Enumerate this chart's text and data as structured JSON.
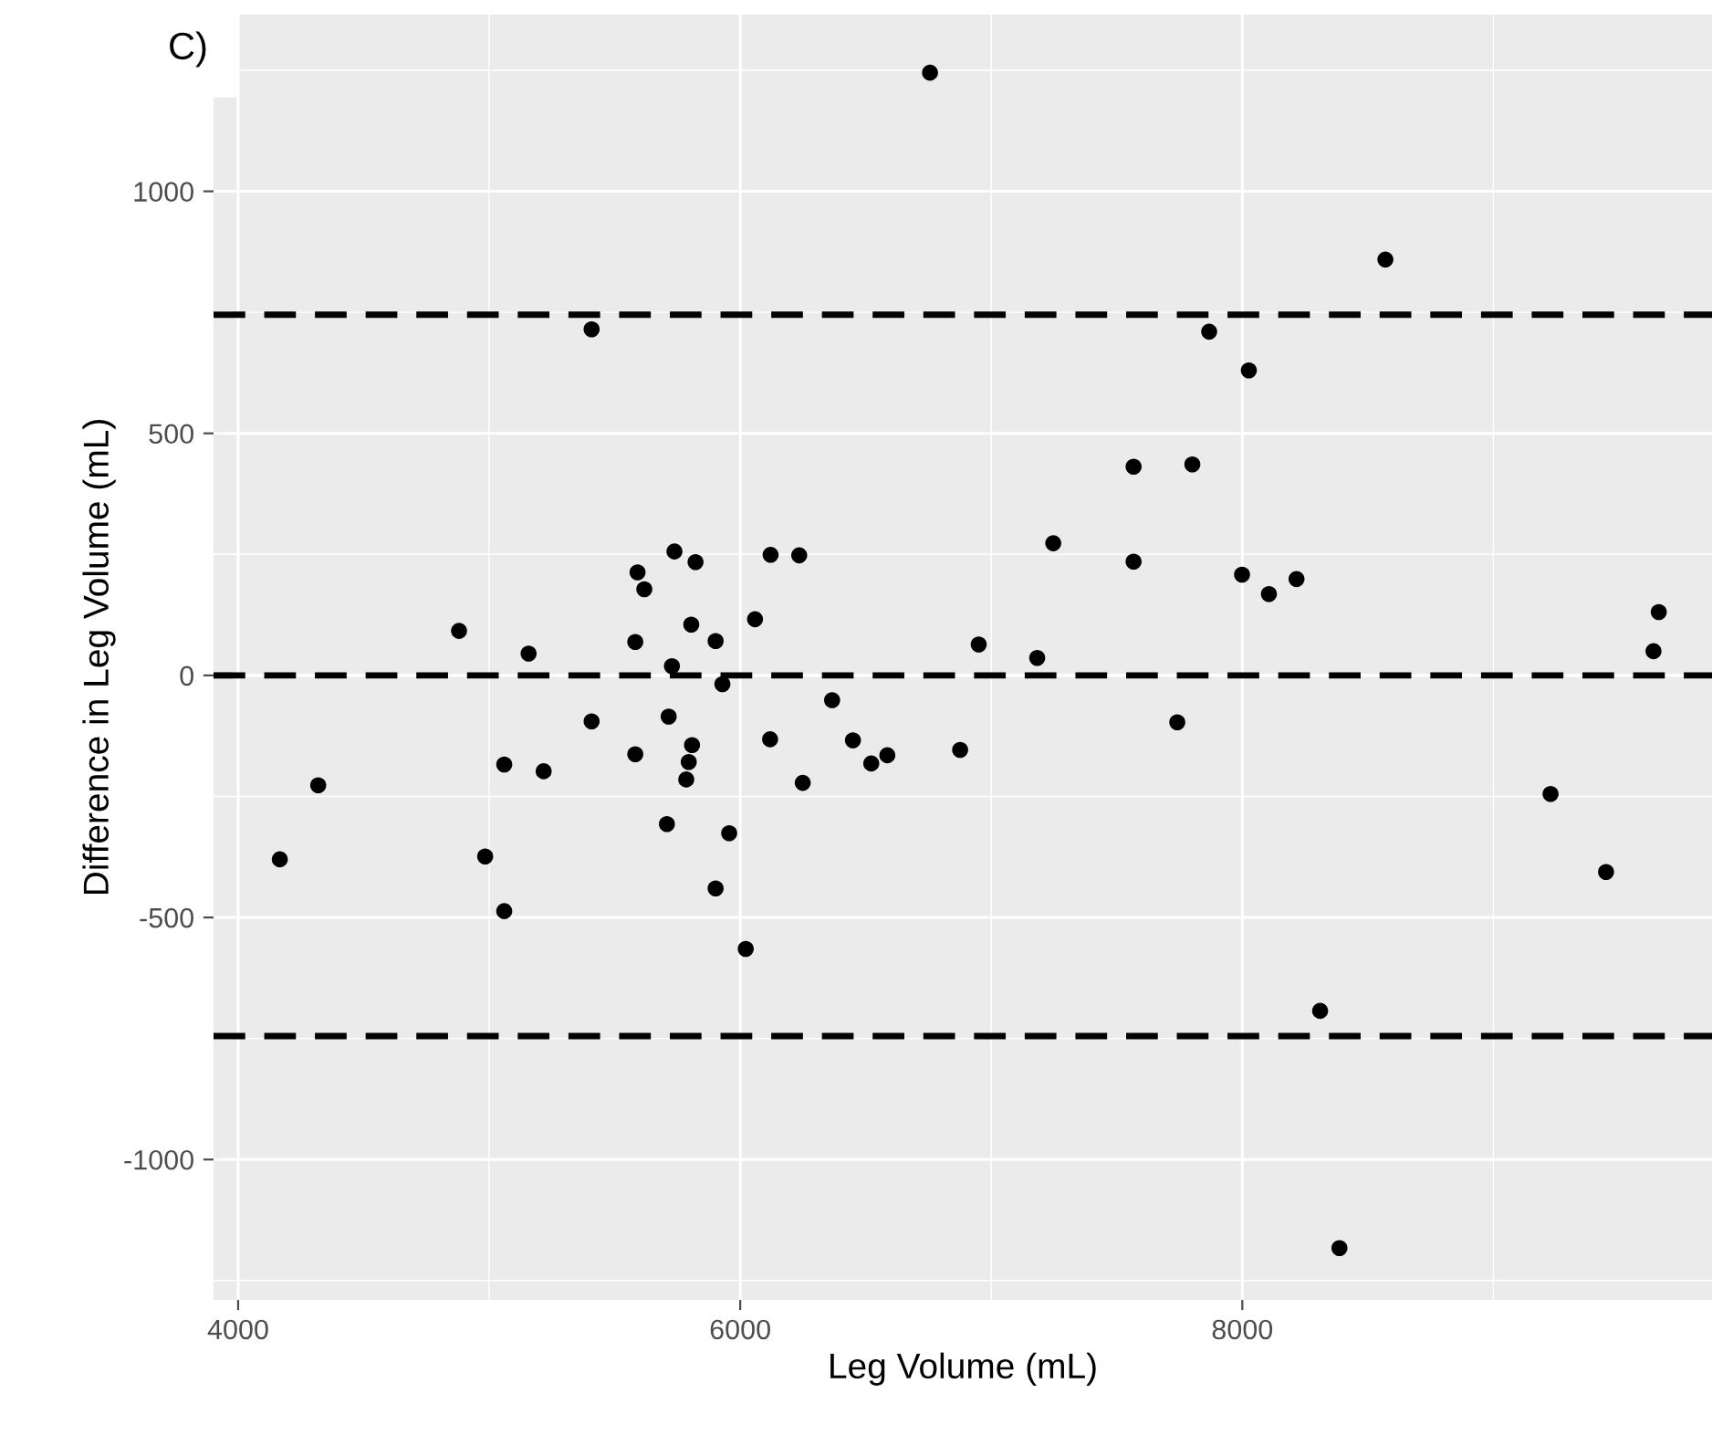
{
  "chart_data": {
    "type": "scatter",
    "title": "C)",
    "xlabel": "Leg Volume (mL)",
    "ylabel": "Difference in Leg Volume (mL)",
    "x": [
      5408,
      4880,
      5157,
      4166,
      4319,
      5060,
      5217,
      4984,
      5060,
      5408,
      5738,
      5822,
      5591,
      5618,
      5805,
      5902,
      6059,
      5582,
      5728,
      5929,
      5715,
      5582,
      5808,
      5795,
      5785,
      5708,
      5956,
      5902,
      6022,
      6756,
      6121,
      6235,
      6366,
      6119,
      6449,
      6522,
      6586,
      6249,
      6876,
      6950,
      7183,
      7247,
      7567,
      7567,
      7801,
      7741,
      7868,
      8570,
      8026,
      7999,
      8106,
      8216,
      9659,
      9638,
      9228,
      9449,
      8310,
      8387
    ],
    "values": [
      715,
      92,
      45,
      -380,
      -227,
      -184,
      -198,
      -374,
      -487,
      -95,
      256,
      234,
      213,
      178,
      105,
      71,
      116,
      69,
      19,
      -18,
      -85,
      -163,
      -144,
      -179,
      -215,
      -307,
      -326,
      -440,
      -565,
      1245,
      249,
      248,
      -51,
      -132,
      -134,
      -182,
      -165,
      -222,
      -154,
      64,
      36,
      273,
      431,
      235,
      436,
      -97,
      710,
      859,
      630,
      208,
      168,
      199,
      131,
      50,
      -245,
      -406,
      -693,
      -1183
    ],
    "color": "#000000",
    "marker": "circle",
    "xlim": [
      3902,
      9871
    ],
    "ylim": [
      -1290,
      1365
    ],
    "xticks": [
      4000,
      6000,
      8000
    ],
    "yticks": [
      -1000,
      -500,
      0,
      500,
      1000
    ],
    "grid": true,
    "ref_lines": [
      {
        "axis": "y",
        "value": 745,
        "color": "#000000",
        "line_style": "dashed"
      },
      {
        "axis": "y",
        "value": 0,
        "color": "#000000",
        "line_style": "dashed"
      },
      {
        "axis": "y",
        "value": -745,
        "color": "#000000",
        "line_style": "dashed"
      }
    ]
  }
}
